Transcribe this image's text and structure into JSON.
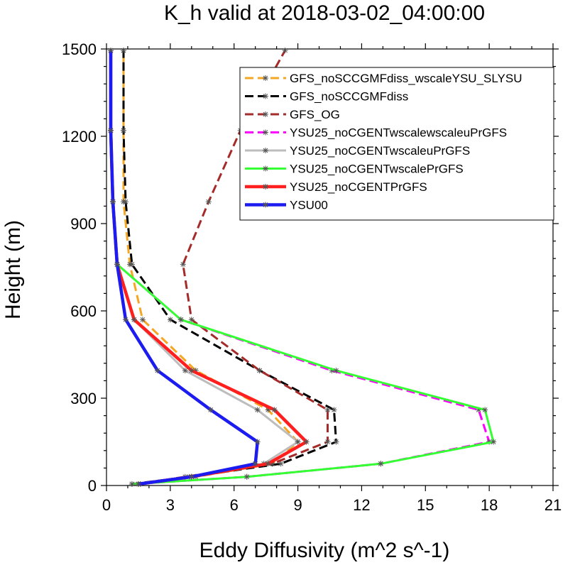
{
  "chart_data": {
    "type": "line",
    "title": "K_h valid at 2018-03-02_04:00:00",
    "xlabel": "Eddy Diffusivity (m^2 s^-1)",
    "ylabel": "Height (m)",
    "xlim": [
      0,
      21
    ],
    "ylim": [
      0,
      1500
    ],
    "xticks": [
      "0",
      "3",
      "6",
      "9",
      "12",
      "15",
      "18",
      "21"
    ],
    "yticks": [
      "0",
      "300",
      "600",
      "900",
      "1200",
      "1500"
    ],
    "xtick_values": [
      0,
      3,
      6,
      9,
      12,
      15,
      18,
      21
    ],
    "ytick_values": [
      0,
      300,
      600,
      900,
      1200,
      1500
    ],
    "legend_position": "top-right",
    "grid": false,
    "series": [
      {
        "name": "GFS_noSCCGMFdiss_wscaleYSU_SLYSU",
        "color": "#f5a623",
        "dash": "dash",
        "x": [
          1.6,
          4.2,
          7.8,
          9.0,
          7.6,
          4.2,
          1.7,
          1.1,
          0.8,
          0.8,
          0.8
        ],
        "y": [
          5,
          30,
          75,
          150,
          260,
          395,
          570,
          760,
          975,
          1220,
          1495
        ]
      },
      {
        "name": "GFS_noSCCGMFdiss",
        "color": "#000000",
        "dash": "dash",
        "x": [
          1.2,
          3.9,
          8.2,
          10.8,
          10.7,
          7.2,
          3.0,
          1.2,
          0.9,
          0.8,
          0.8
        ],
        "y": [
          5,
          30,
          75,
          150,
          260,
          395,
          570,
          760,
          975,
          1220,
          1495
        ]
      },
      {
        "name": "GFS_OG",
        "color": "#a52a2a",
        "dash": "dash",
        "x": [
          1.5,
          3.7,
          7.8,
          10.4,
          10.4,
          7.2,
          4.0,
          3.6,
          4.8,
          6.3,
          8.4
        ],
        "y": [
          5,
          30,
          75,
          150,
          260,
          395,
          570,
          760,
          975,
          1220,
          1495
        ]
      },
      {
        "name": "YSU25_noCGENTwscalewscaleuPrGFS",
        "color": "#ff00ff",
        "dash": "dash",
        "x": [
          1.2,
          6.6,
          12.9,
          18.0,
          17.5,
          10.6,
          3.5,
          0.5,
          0.3,
          0.2,
          0.2
        ],
        "y": [
          5,
          30,
          75,
          150,
          260,
          395,
          570,
          760,
          975,
          1220,
          1495
        ]
      },
      {
        "name": "YSU25_noCGENTwscaleuPrGFS",
        "color": "#bdbdbd",
        "dash": "solid",
        "x": [
          1.5,
          4.0,
          7.4,
          9.0,
          7.1,
          3.7,
          1.3,
          0.5,
          0.3,
          0.2,
          0.2
        ],
        "y": [
          5,
          30,
          75,
          150,
          260,
          395,
          570,
          760,
          975,
          1220,
          1495
        ]
      },
      {
        "name": "YSU25_noCGENTwscalePrGFS",
        "color": "#33ff33",
        "dash": "solid",
        "x": [
          1.2,
          6.6,
          12.9,
          18.2,
          17.8,
          10.8,
          3.5,
          0.5,
          0.3,
          0.2,
          0.2
        ],
        "y": [
          5,
          30,
          75,
          150,
          260,
          395,
          570,
          760,
          975,
          1220,
          1495
        ]
      },
      {
        "name": "YSU25_noCGENTPrGFS",
        "color": "#ff1f1f",
        "dash": "solid",
        "x": [
          1.5,
          4.0,
          7.6,
          9.4,
          7.9,
          4.0,
          1.3,
          0.5,
          0.3,
          0.2,
          0.2
        ],
        "y": [
          5,
          30,
          75,
          150,
          260,
          395,
          570,
          760,
          975,
          1220,
          1495
        ]
      },
      {
        "name": "YSU00",
        "color": "#1c1cf0",
        "dash": "solid",
        "x": [
          1.5,
          4.0,
          7.0,
          7.1,
          4.9,
          2.4,
          0.9,
          0.5,
          0.3,
          0.2,
          0.2
        ],
        "y": [
          5,
          30,
          75,
          150,
          260,
          395,
          570,
          760,
          975,
          1220,
          1495
        ]
      }
    ]
  }
}
